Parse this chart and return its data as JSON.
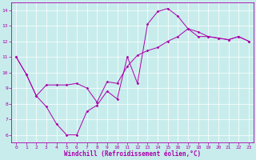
{
  "xlabel": "Windchill (Refroidissement éolien,°C)",
  "ylabel": "",
  "background_color": "#c8ecec",
  "grid_color": "#ffffff",
  "line_color": "#aa00aa",
  "xlim": [
    -0.5,
    23.5
  ],
  "ylim": [
    5.5,
    14.5
  ],
  "xticks": [
    0,
    1,
    2,
    3,
    4,
    5,
    6,
    7,
    8,
    9,
    10,
    11,
    12,
    13,
    14,
    15,
    16,
    17,
    18,
    19,
    20,
    21,
    22,
    23
  ],
  "yticks": [
    6,
    7,
    8,
    9,
    10,
    11,
    12,
    13,
    14
  ],
  "line1_x": [
    0,
    1,
    2,
    3,
    4,
    5,
    6,
    7,
    8,
    9,
    10,
    11,
    12,
    13,
    14,
    15,
    16,
    17,
    18,
    19,
    20,
    21,
    22,
    23
  ],
  "line1_y": [
    11.0,
    9.9,
    8.5,
    7.8,
    6.7,
    6.0,
    6.0,
    7.5,
    7.9,
    8.8,
    8.3,
    11.0,
    9.3,
    13.1,
    13.9,
    14.1,
    13.6,
    12.8,
    12.6,
    12.3,
    12.2,
    12.1,
    12.3,
    12.0
  ],
  "line2_x": [
    0,
    1,
    2,
    3,
    4,
    5,
    6,
    7,
    8,
    9,
    10,
    11,
    12,
    13,
    14,
    15,
    16,
    17,
    18,
    19,
    20,
    21,
    22,
    23
  ],
  "line2_y": [
    11.0,
    9.9,
    8.5,
    9.2,
    9.2,
    9.2,
    9.3,
    9.0,
    8.1,
    9.4,
    9.3,
    10.4,
    11.1,
    11.4,
    11.6,
    12.0,
    12.3,
    12.8,
    12.3,
    12.3,
    12.2,
    12.1,
    12.3,
    12.0
  ],
  "tick_fontsize": 4.5,
  "xlabel_fontsize": 5.5,
  "marker_size": 1.8,
  "line_width": 0.7
}
